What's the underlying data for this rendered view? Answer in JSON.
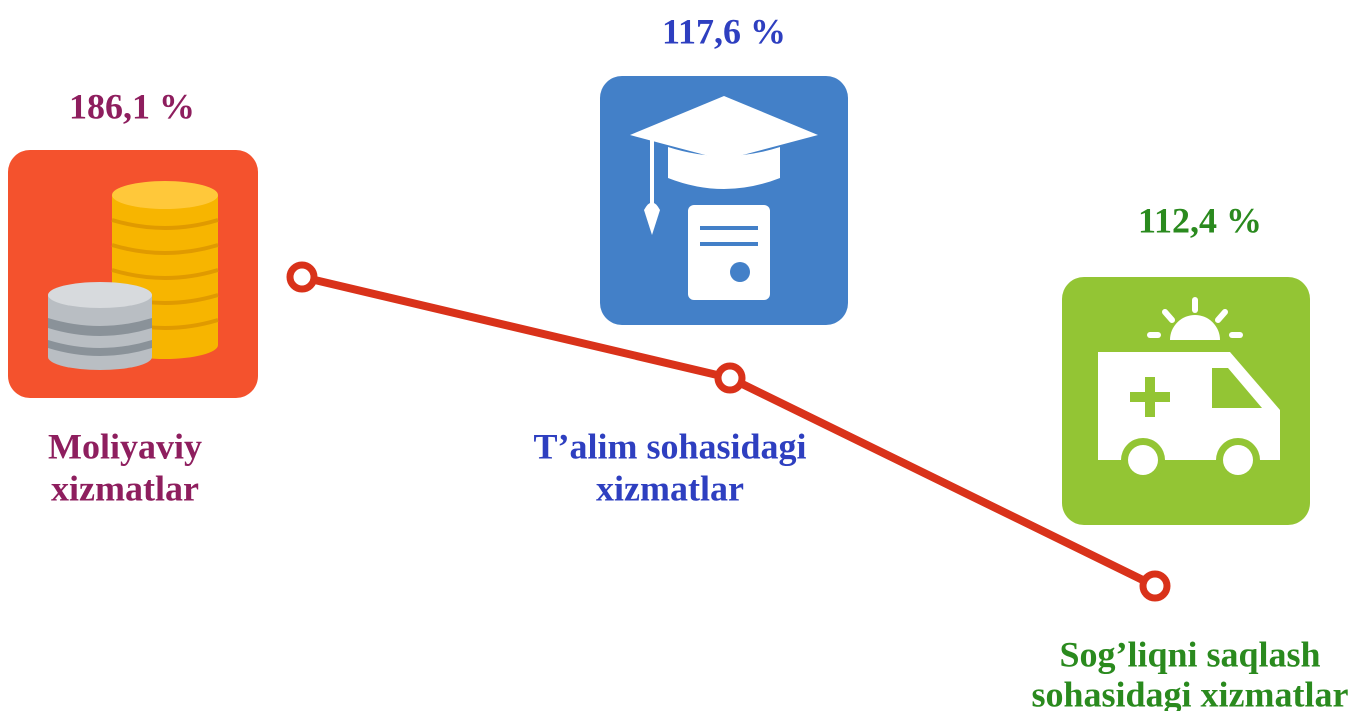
{
  "items": [
    {
      "value": "186,1 %",
      "label_lines": [
        "Moliyaviy",
        "xizmatlar"
      ]
    },
    {
      "value": "117,6 %",
      "label_lines": [
        "T’alim sohasidagi",
        "xizmatlar"
      ]
    },
    {
      "value": "112,4 %",
      "label_lines": [
        "Sog’liqni saqlash",
        "sohasidagi xizmatlar"
      ]
    }
  ]
}
